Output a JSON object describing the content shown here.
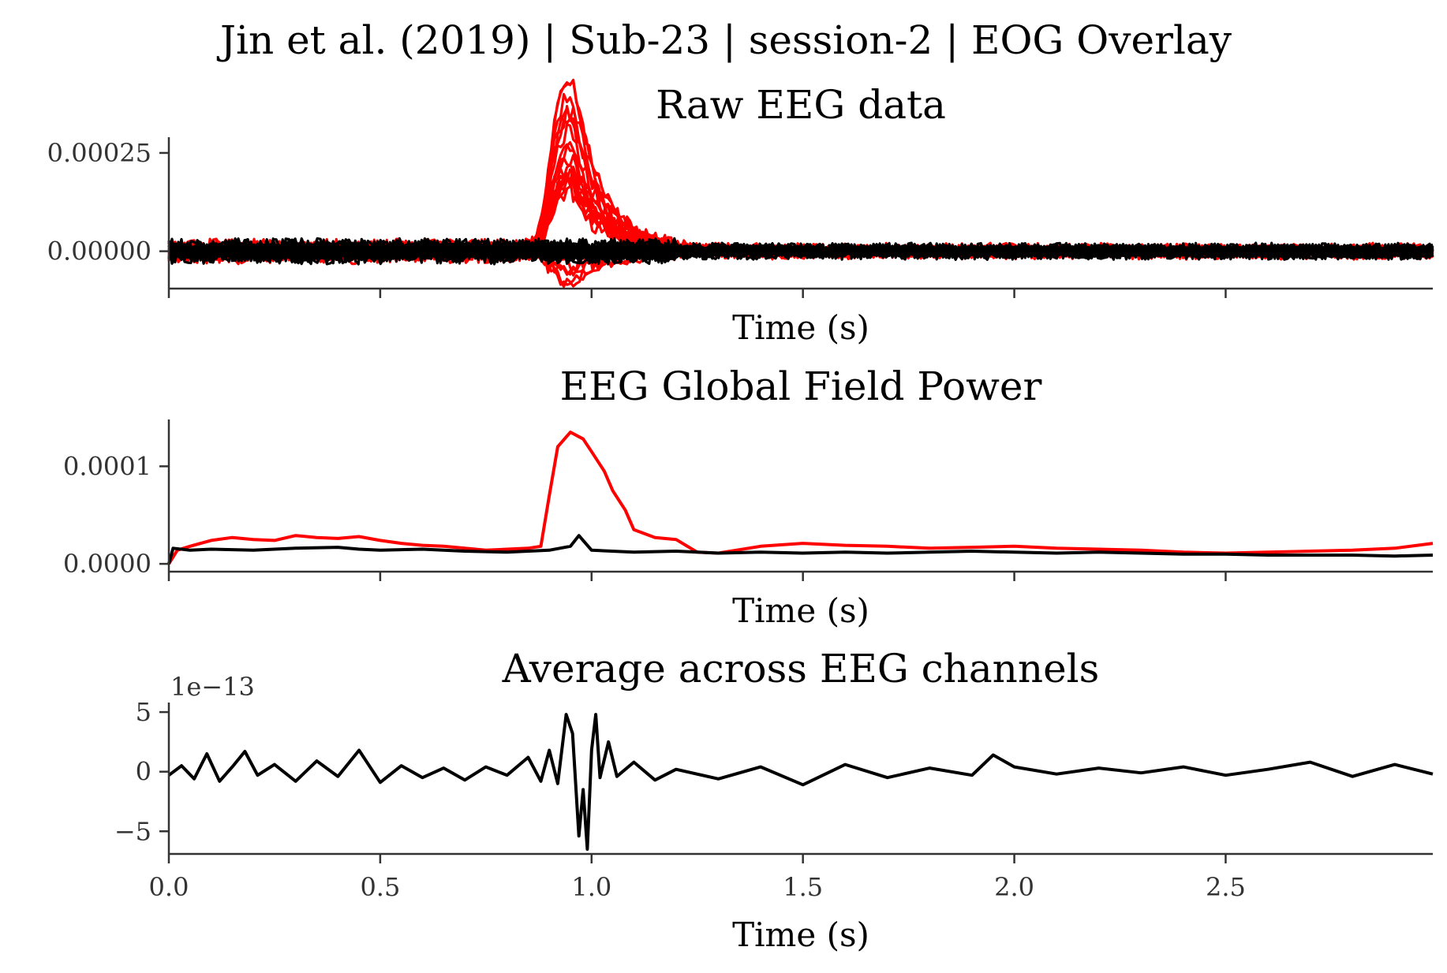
{
  "figure": {
    "suptitle": "Jin et al. (2019) | Sub-23 | session-2 | EOG Overlay"
  },
  "colors": {
    "raw": "#ff0000",
    "cleaned": "#000000"
  },
  "chart_data": [
    {
      "type": "line",
      "title": "Raw EEG data",
      "xlabel": "Time (s)",
      "ylabel": "",
      "xlim": [
        0,
        2.99
      ],
      "ylim": [
        -9.5e-05,
        0.00029
      ],
      "xticks": [
        0.0,
        0.5,
        1.0,
        1.5,
        2.0,
        2.5
      ],
      "xtick_labels": [
        "",
        "",
        "",
        "",
        "",
        ""
      ],
      "yticks": [
        0.0,
        0.00025
      ],
      "ytick_labels": [
        "0.00000",
        "0.00025"
      ],
      "series": [
        {
          "color": "#ff0000",
          "kind": "channels",
          "n_channels": 24,
          "noise_amp": 2.2e-05,
          "peak_center": 0.955,
          "peak_max": 0.00047,
          "peak_min": -9e-05
        },
        {
          "color": "#000000",
          "kind": "channels",
          "n_channels": 24,
          "noise_amp": 2.2e-05
        }
      ]
    },
    {
      "type": "line",
      "title": "EEG Global Field Power",
      "xlabel": "Time (s)",
      "ylabel": "",
      "xlim": [
        0,
        2.99
      ],
      "ylim": [
        -8e-06,
        0.000148
      ],
      "xticks": [
        0.0,
        0.5,
        1.0,
        1.5,
        2.0,
        2.5
      ],
      "xtick_labels": [
        "",
        "",
        "",
        "",
        "",
        ""
      ],
      "yticks": [
        0.0,
        0.0001
      ],
      "ytick_labels": [
        "0.0000",
        "0.0001"
      ],
      "series": [
        {
          "color": "#ff0000",
          "x": [
            0.0,
            0.02,
            0.05,
            0.1,
            0.15,
            0.2,
            0.25,
            0.3,
            0.35,
            0.4,
            0.45,
            0.5,
            0.55,
            0.6,
            0.65,
            0.7,
            0.75,
            0.8,
            0.85,
            0.88,
            0.9,
            0.92,
            0.95,
            0.98,
            1.0,
            1.03,
            1.05,
            1.08,
            1.1,
            1.15,
            1.2,
            1.25,
            1.3,
            1.4,
            1.5,
            1.6,
            1.7,
            1.8,
            1.9,
            2.0,
            2.1,
            2.2,
            2.3,
            2.4,
            2.5,
            2.6,
            2.7,
            2.8,
            2.9,
            2.99
          ],
          "y": [
            0.0,
            1.4e-05,
            1.8e-05,
            2.4e-05,
            2.7e-05,
            2.5e-05,
            2.4e-05,
            2.9e-05,
            2.7e-05,
            2.6e-05,
            2.8e-05,
            2.4e-05,
            2.1e-05,
            1.9e-05,
            1.8e-05,
            1.6e-05,
            1.4e-05,
            1.5e-05,
            1.6e-05,
            1.8e-05,
            7e-05,
            0.00012,
            0.000135,
            0.000128,
            0.000115,
            9.5e-05,
            7.5e-05,
            5.5e-05,
            3.5e-05,
            2.7e-05,
            2.5e-05,
            1.2e-05,
            1.1e-05,
            1.8e-05,
            2.1e-05,
            1.9e-05,
            1.8e-05,
            1.6e-05,
            1.7e-05,
            1.8e-05,
            1.6e-05,
            1.5e-05,
            1.4e-05,
            1.2e-05,
            1.1e-05,
            1.2e-05,
            1.3e-05,
            1.4e-05,
            1.6e-05,
            2.1e-05
          ]
        },
        {
          "color": "#000000",
          "x": [
            0.0,
            0.01,
            0.05,
            0.1,
            0.2,
            0.3,
            0.4,
            0.45,
            0.5,
            0.6,
            0.7,
            0.8,
            0.9,
            0.95,
            0.97,
            1.0,
            1.1,
            1.2,
            1.3,
            1.4,
            1.5,
            1.6,
            1.7,
            1.8,
            1.9,
            2.0,
            2.1,
            2.2,
            2.3,
            2.4,
            2.5,
            2.6,
            2.7,
            2.8,
            2.9,
            2.99
          ],
          "y": [
            0.0,
            1.6e-05,
            1.4e-05,
            1.5e-05,
            1.4e-05,
            1.6e-05,
            1.7e-05,
            1.5e-05,
            1.4e-05,
            1.5e-05,
            1.3e-05,
            1.2e-05,
            1.4e-05,
            1.8e-05,
            2.9e-05,
            1.4e-05,
            1.2e-05,
            1.3e-05,
            1.1e-05,
            1.2e-05,
            1.1e-05,
            1.2e-05,
            1.1e-05,
            1.2e-05,
            1.3e-05,
            1.2e-05,
            1.1e-05,
            1.2e-05,
            1.1e-05,
            1e-05,
            1e-05,
            9e-06,
            9e-06,
            9e-06,
            8e-06,
            9e-06
          ]
        }
      ]
    },
    {
      "type": "line",
      "title": "Average across EEG channels",
      "xlabel": "Time (s)",
      "ylabel": "",
      "offset_text": "1e−13",
      "xlim": [
        0,
        2.99
      ],
      "ylim": [
        -6.9,
        5.8
      ],
      "xticks": [
        0.0,
        0.5,
        1.0,
        1.5,
        2.0,
        2.5
      ],
      "xtick_labels": [
        "0.0",
        "0.5",
        "1.0",
        "1.5",
        "2.0",
        "2.5"
      ],
      "yticks": [
        -5,
        0,
        5
      ],
      "ytick_labels": [
        "−5",
        "0",
        "5"
      ],
      "series": [
        {
          "color": "#000000",
          "x": [
            0.0,
            0.03,
            0.06,
            0.09,
            0.12,
            0.15,
            0.18,
            0.21,
            0.25,
            0.3,
            0.35,
            0.4,
            0.45,
            0.5,
            0.55,
            0.6,
            0.65,
            0.7,
            0.75,
            0.8,
            0.85,
            0.88,
            0.9,
            0.92,
            0.94,
            0.955,
            0.97,
            0.98,
            0.99,
            1.0,
            1.01,
            1.02,
            1.04,
            1.06,
            1.1,
            1.15,
            1.2,
            1.3,
            1.4,
            1.5,
            1.6,
            1.7,
            1.8,
            1.9,
            1.95,
            2.0,
            2.1,
            2.2,
            2.3,
            2.4,
            2.5,
            2.6,
            2.7,
            2.8,
            2.9,
            2.99
          ],
          "y": [
            -0.3,
            0.5,
            -0.6,
            1.5,
            -0.8,
            0.4,
            1.7,
            -0.3,
            0.6,
            -0.8,
            0.9,
            -0.4,
            1.8,
            -0.9,
            0.5,
            -0.5,
            0.3,
            -0.7,
            0.4,
            -0.3,
            1.2,
            -0.8,
            1.8,
            -1.0,
            4.8,
            3.2,
            -5.4,
            -1.5,
            -6.5,
            1.8,
            4.8,
            -0.5,
            2.5,
            -0.4,
            0.8,
            -0.7,
            0.2,
            -0.6,
            0.4,
            -1.1,
            0.6,
            -0.5,
            0.3,
            -0.3,
            1.4,
            0.4,
            -0.2,
            0.3,
            -0.1,
            0.4,
            -0.3,
            0.2,
            0.8,
            -0.4,
            0.6,
            -0.2
          ]
        }
      ]
    }
  ]
}
